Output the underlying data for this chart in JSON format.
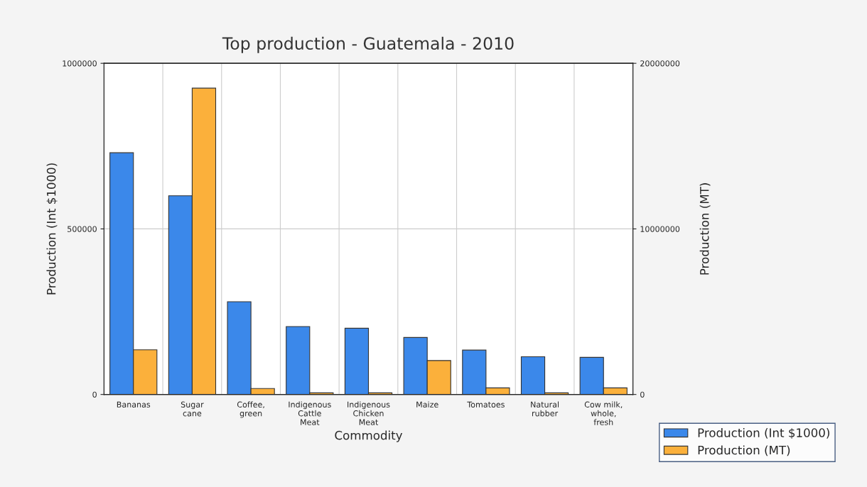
{
  "chart_data": {
    "type": "bar",
    "title": "Top production - Guatemala - 2010",
    "xlabel": "Commodity",
    "ylabel": "Production (Int $1000)",
    "y2label": "Production (MT)",
    "categories": [
      "Bananas",
      "Sugar\ncane",
      "Coffee,\ngreen",
      "Indigenous\nCattle\nMeat",
      "Indigenous\nChicken\nMeat",
      "Maize",
      "Tomatoes",
      "Natural\nrubber",
      "Cow milk,\nwhole,\nfresh"
    ],
    "series": [
      {
        "name": "Production (Int $1000)",
        "color": "#3b88ea",
        "values": [
          730000,
          600000,
          280000,
          205000,
          200000,
          172000,
          134000,
          114000,
          112000
        ]
      },
      {
        "name": "Production (MT)",
        "color": "#fbb03b",
        "axis": "y2",
        "values": [
          2700000,
          18500000,
          360000,
          100000,
          100000,
          2050000,
          400000,
          100000,
          400000
        ]
      }
    ],
    "ylim": [
      0,
      1000000
    ],
    "yticks": [
      0,
      500000,
      1000000
    ],
    "y2lim": [
      0,
      20000000
    ],
    "y2ticks": [
      0,
      10000000,
      20000000
    ],
    "grid": true,
    "legend": "bottom right"
  }
}
